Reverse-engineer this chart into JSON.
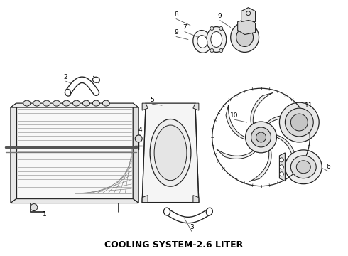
{
  "title": "COOLING SYSTEM-2.6 LITER",
  "title_fontsize": 9,
  "title_fontweight": "bold",
  "bg_color": "#ffffff",
  "line_color": "#222222",
  "label_color": "#111111",
  "fig_width": 4.9,
  "fig_height": 3.6,
  "dpi": 100
}
